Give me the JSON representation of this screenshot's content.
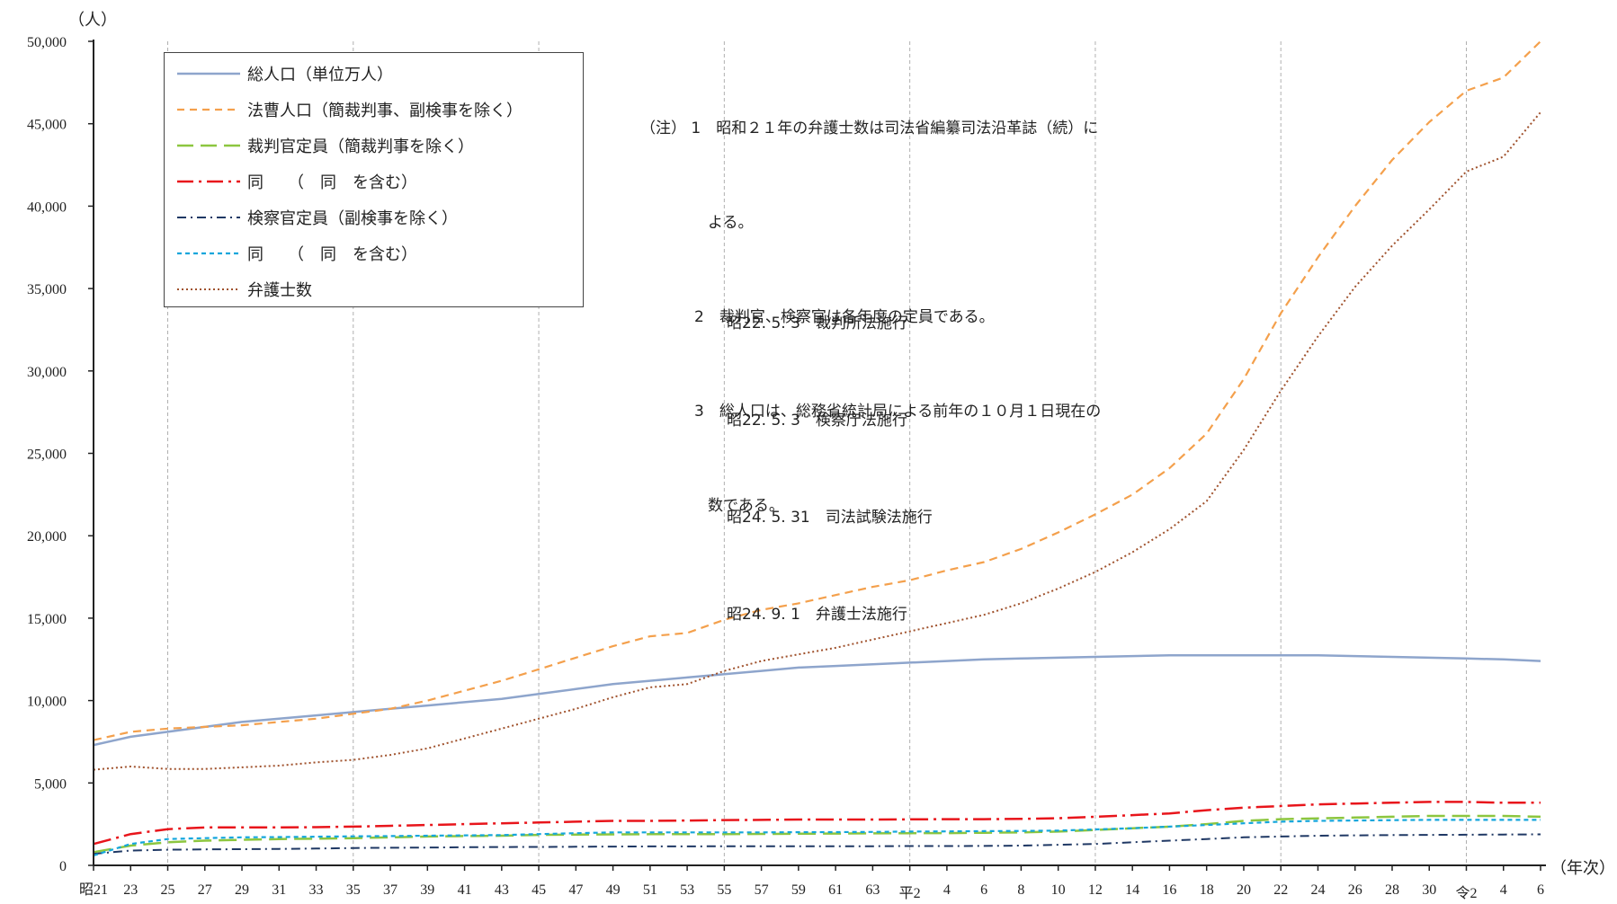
{
  "chart_data": {
    "type": "line",
    "yunit": "（人）",
    "xunit": "（年次）",
    "ylim": [
      0,
      50000
    ],
    "yticks": [
      "0",
      "5,000",
      "10,000",
      "15,000",
      "20,000",
      "25,000",
      "30,000",
      "35,000",
      "40,000",
      "45,000",
      "50,000"
    ],
    "xlabels": [
      "昭21",
      "23",
      "25",
      "27",
      "29",
      "31",
      "33",
      "35",
      "37",
      "39",
      "41",
      "43",
      "45",
      "47",
      "49",
      "51",
      "53",
      "55",
      "57",
      "59",
      "61",
      "63",
      "平2",
      "4",
      "6",
      "8",
      "10",
      "12",
      "14",
      "16",
      "18",
      "20",
      "22",
      "24",
      "26",
      "28",
      "30",
      "令2",
      "4",
      "6"
    ],
    "gridlines_at": [
      "25",
      "35",
      "45",
      "55",
      "平2",
      "12",
      "22",
      "令2"
    ],
    "series": [
      {
        "name": "総人口（単位万人）",
        "color": "#8ea5cc",
        "dash": "solid",
        "values": [
          7300,
          7800,
          8100,
          8400,
          8700,
          8900,
          9100,
          9300,
          9500,
          9700,
          9900,
          10100,
          10400,
          10700,
          11000,
          11200,
          11400,
          11600,
          11800,
          12000,
          12100,
          12200,
          12300,
          12400,
          12500,
          12550,
          12600,
          12650,
          12700,
          12750,
          12750,
          12750,
          12750,
          12750,
          12700,
          12650,
          12600,
          12550,
          12500,
          12400
        ]
      },
      {
        "name": "法曹人口（簡裁判事、副検事を除く）",
        "color": "#f4a04c",
        "dash": "dash",
        "values": [
          7600,
          8100,
          8300,
          8400,
          8500,
          8700,
          8900,
          9200,
          9500,
          10000,
          10600,
          11200,
          11900,
          12600,
          13300,
          13900,
          14100,
          14900,
          15500,
          15900,
          16400,
          16900,
          17300,
          17900,
          18400,
          19200,
          20200,
          21300,
          22500,
          24100,
          26200,
          29500,
          33500,
          36900,
          40000,
          42800,
          45100,
          47000,
          47800,
          50000
        ]
      },
      {
        "name": "裁判官定員（簡裁判事を除く）",
        "color": "#8cc63f",
        "dash": "longdash",
        "values": [
          800,
          1200,
          1400,
          1500,
          1550,
          1600,
          1620,
          1650,
          1700,
          1750,
          1780,
          1800,
          1850,
          1870,
          1880,
          1890,
          1900,
          1900,
          1910,
          1920,
          1930,
          1940,
          1950,
          1960,
          1980,
          2000,
          2050,
          2150,
          2250,
          2350,
          2500,
          2700,
          2800,
          2850,
          2900,
          2950,
          3000,
          3000,
          3000,
          2950
        ]
      },
      {
        "name": "同　　（　同　を含む）",
        "color": "#e8151b",
        "dash": "dashdot",
        "values": [
          1300,
          1900,
          2200,
          2300,
          2300,
          2300,
          2320,
          2350,
          2400,
          2450,
          2500,
          2550,
          2600,
          2650,
          2700,
          2700,
          2720,
          2750,
          2760,
          2780,
          2780,
          2780,
          2790,
          2800,
          2800,
          2820,
          2860,
          2950,
          3050,
          3150,
          3350,
          3500,
          3600,
          3700,
          3750,
          3800,
          3850,
          3850,
          3800,
          3800
        ]
      },
      {
        "name": "検察官定員（副検事を除く）",
        "color": "#1f3864",
        "dash": "dashdot2",
        "values": [
          700,
          900,
          950,
          970,
          980,
          1000,
          1020,
          1050,
          1070,
          1080,
          1100,
          1110,
          1120,
          1130,
          1140,
          1150,
          1150,
          1160,
          1160,
          1160,
          1160,
          1160,
          1170,
          1170,
          1180,
          1200,
          1250,
          1300,
          1400,
          1500,
          1600,
          1700,
          1750,
          1800,
          1820,
          1840,
          1850,
          1860,
          1870,
          1880
        ]
      },
      {
        "name": "同　　（　同　を含む）",
        "color": "#14a6dc",
        "dash": "shortdash",
        "values": [
          600,
          1300,
          1600,
          1650,
          1700,
          1720,
          1740,
          1760,
          1780,
          1800,
          1820,
          1840,
          1900,
          1950,
          2000,
          2000,
          2000,
          2000,
          2000,
          2010,
          2020,
          2030,
          2050,
          2060,
          2080,
          2090,
          2110,
          2180,
          2250,
          2350,
          2450,
          2550,
          2650,
          2700,
          2720,
          2740,
          2760,
          2760,
          2760,
          2760
        ]
      },
      {
        "name": "弁護士数",
        "color": "#a0522d",
        "dash": "dot",
        "values": [
          5800,
          6000,
          5850,
          5850,
          5950,
          6050,
          6250,
          6400,
          6700,
          7100,
          7700,
          8300,
          8900,
          9500,
          10200,
          10800,
          11000,
          11800,
          12400,
          12800,
          13200,
          13700,
          14200,
          14700,
          15200,
          15900,
          16800,
          17800,
          19000,
          20400,
          22100,
          25200,
          28800,
          32100,
          35100,
          37600,
          39800,
          42100,
          43000,
          45700
        ]
      }
    ]
  },
  "notes": {
    "n1a": "（注） 1　昭和２１年の弁護士数は司法省編纂司法沿革誌（続）に",
    "n1b": "よる。",
    "n2": "2　裁判官、検察官は各年度の定員である。",
    "n3a": "3　総人口は、総務省統計局による前年の１０月１日現在の",
    "n3b": "数である。"
  },
  "events": [
    "昭22. 5. 3　裁判所法施行",
    "昭22. 5. 3　検察庁法施行",
    "昭24. 5. 31　司法試験法施行",
    "昭24. 9. 1　弁護士法施行"
  ]
}
